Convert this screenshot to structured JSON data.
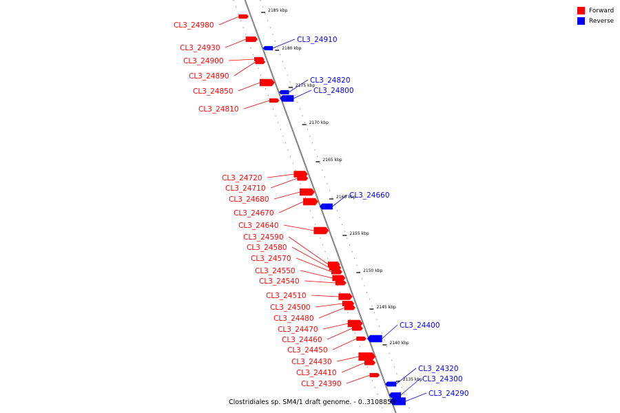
{
  "caption": "Clostridiales sp. SM4/1 draft genome. - 0..3108859",
  "colors": {
    "forward": "#ff0000",
    "reverse": "#0000ff",
    "backbone": "#888888"
  },
  "legend": [
    {
      "label": "Forward",
      "color": "#ff0000"
    },
    {
      "label": "Reverse",
      "color": "#0000ff"
    }
  ],
  "axis": {
    "unit": "kbp",
    "ticks": [
      "2185 kbp",
      "2180 kbp",
      "2175 kbp",
      "2170 kbp",
      "2165 kbp",
      "2160 kbp",
      "2155 kbp",
      "2150 kbp",
      "2145 kbp",
      "2140 kbp",
      "2135 kbp"
    ]
  },
  "genes": [
    {
      "name": "CL3_24980",
      "strand": "forward"
    },
    {
      "name": "CL3_24930",
      "strand": "forward"
    },
    {
      "name": "CL3_24910",
      "strand": "reverse"
    },
    {
      "name": "CL3_24900",
      "strand": "forward"
    },
    {
      "name": "CL3_24890",
      "strand": "forward"
    },
    {
      "name": "CL3_24850",
      "strand": "forward"
    },
    {
      "name": "CL3_24820",
      "strand": "reverse"
    },
    {
      "name": "CL3_24800",
      "strand": "reverse"
    },
    {
      "name": "CL3_24810",
      "strand": "forward"
    },
    {
      "name": "CL3_24720",
      "strand": "forward"
    },
    {
      "name": "CL3_24710",
      "strand": "forward"
    },
    {
      "name": "CL3_24680",
      "strand": "forward"
    },
    {
      "name": "CL3_24660",
      "strand": "reverse"
    },
    {
      "name": "CL3_24670",
      "strand": "forward"
    },
    {
      "name": "CL3_24640",
      "strand": "forward"
    },
    {
      "name": "CL3_24590",
      "strand": "forward"
    },
    {
      "name": "CL3_24580",
      "strand": "forward"
    },
    {
      "name": "CL3_24570",
      "strand": "forward"
    },
    {
      "name": "CL3_24550",
      "strand": "forward"
    },
    {
      "name": "CL3_24540",
      "strand": "forward"
    },
    {
      "name": "CL3_24510",
      "strand": "forward"
    },
    {
      "name": "CL3_24500",
      "strand": "forward"
    },
    {
      "name": "CL3_24480",
      "strand": "forward"
    },
    {
      "name": "CL3_24470",
      "strand": "forward"
    },
    {
      "name": "CL3_24460",
      "strand": "forward"
    },
    {
      "name": "CL3_24400",
      "strand": "reverse"
    },
    {
      "name": "CL3_24450",
      "strand": "forward"
    },
    {
      "name": "CL3_24430",
      "strand": "forward"
    },
    {
      "name": "CL3_24410",
      "strand": "forward"
    },
    {
      "name": "CL3_24390",
      "strand": "forward"
    },
    {
      "name": "CL3_24320",
      "strand": "reverse"
    },
    {
      "name": "CL3_24300",
      "strand": "reverse"
    },
    {
      "name": "CL3_24290",
      "strand": "reverse"
    }
  ]
}
